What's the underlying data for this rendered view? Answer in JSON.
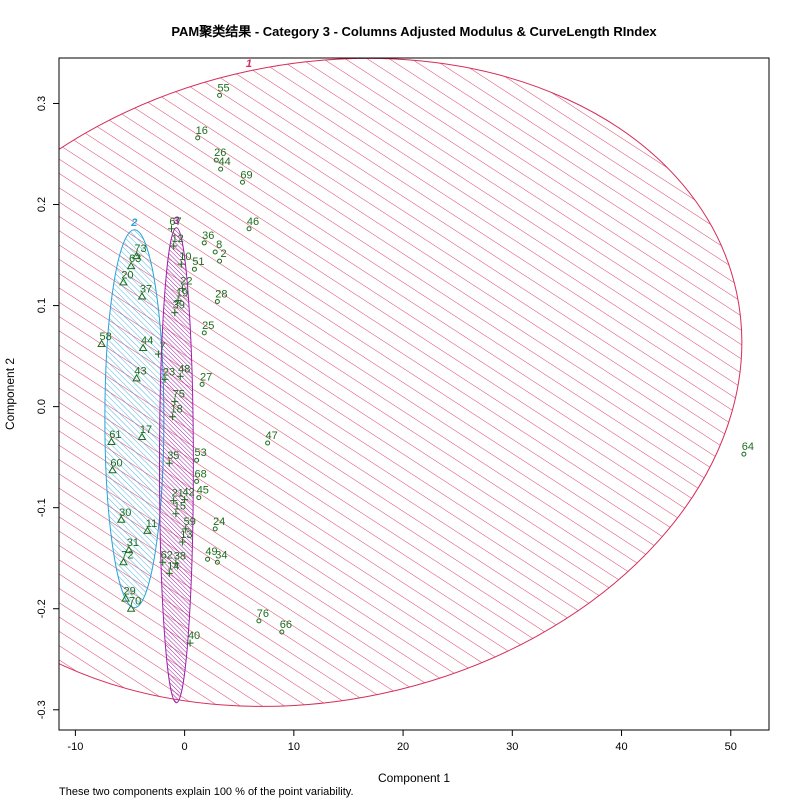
{
  "chart_data": {
    "type": "scatter",
    "title": "PAM聚类结果 - Category  3  - Columns  Adjusted Modulus  &  CurveLength RIndex",
    "xlabel": "Component 1",
    "ylabel": "Component 2",
    "footnote": "These two components explain 100 % of the point variability.",
    "xlim": [
      -11.5,
      53.5
    ],
    "ylim": [
      -0.32,
      0.345
    ],
    "x_ticks": [
      -10,
      0,
      10,
      20,
      30,
      40,
      50
    ],
    "x_tick_labels": [
      "-10",
      "0",
      "10",
      "20",
      "30",
      "40",
      "50"
    ],
    "y_ticks": [
      -0.3,
      -0.2,
      -0.1,
      0.0,
      0.1,
      0.2,
      0.3
    ],
    "y_tick_labels": [
      "-0.3",
      "-0.2",
      "-0.1",
      "0.0",
      "0.1",
      "0.2",
      "0.3"
    ],
    "point_color": "#1c6e1c",
    "clusters": [
      {
        "id": "1",
        "color": "#d62d5a",
        "ellipse": {
          "cx": 11.95,
          "cy": 0.024,
          "rx": 39.45,
          "ry": 0.315,
          "angle_deg": -12
        }
      },
      {
        "id": "2",
        "color": "#2aa3d6",
        "ellipse": {
          "cx": -4.6,
          "cy": -0.012,
          "rx": 2.7,
          "ry": 0.187,
          "angle_deg": 0
        }
      },
      {
        "id": "3",
        "color": "#a01fa8",
        "ellipse": {
          "cx": -0.75,
          "cy": -0.058,
          "rx": 1.55,
          "ry": 0.235,
          "angle_deg": 0
        }
      }
    ],
    "points": [
      {
        "label": "55",
        "x": 3.2,
        "y": 0.308,
        "cluster": "1"
      },
      {
        "label": "16",
        "x": 1.2,
        "y": 0.266,
        "cluster": "1"
      },
      {
        "label": "26",
        "x": 2.9,
        "y": 0.244,
        "cluster": "1"
      },
      {
        "label": "44",
        "x": 3.3,
        "y": 0.235,
        "cluster": "1"
      },
      {
        "label": "69",
        "x": 5.3,
        "y": 0.222,
        "cluster": "1"
      },
      {
        "label": "46",
        "x": 5.9,
        "y": 0.176,
        "cluster": "1"
      },
      {
        "label": "36",
        "x": 1.8,
        "y": 0.162,
        "cluster": "1"
      },
      {
        "label": "8",
        "x": 2.8,
        "y": 0.153,
        "cluster": "1"
      },
      {
        "label": "2",
        "x": 3.2,
        "y": 0.144,
        "cluster": "1"
      },
      {
        "label": "51",
        "x": 0.9,
        "y": 0.136,
        "cluster": "1"
      },
      {
        "label": "28",
        "x": 3.0,
        "y": 0.104,
        "cluster": "1"
      },
      {
        "label": "25",
        "x": 1.8,
        "y": 0.073,
        "cluster": "1"
      },
      {
        "label": "27",
        "x": 1.6,
        "y": 0.022,
        "cluster": "1"
      },
      {
        "label": "47",
        "x": 7.6,
        "y": -0.036,
        "cluster": "1"
      },
      {
        "label": "64",
        "x": 51.2,
        "y": -0.047,
        "cluster": "1"
      },
      {
        "label": "53",
        "x": 1.1,
        "y": -0.053,
        "cluster": "1"
      },
      {
        "label": "68",
        "x": 1.1,
        "y": -0.074,
        "cluster": "1"
      },
      {
        "label": "45",
        "x": 1.3,
        "y": -0.09,
        "cluster": "1"
      },
      {
        "label": "24",
        "x": 2.8,
        "y": -0.121,
        "cluster": "1"
      },
      {
        "label": "49",
        "x": 2.1,
        "y": -0.151,
        "cluster": "1"
      },
      {
        "label": "34",
        "x": 3.0,
        "y": -0.154,
        "cluster": "1"
      },
      {
        "label": "76",
        "x": 6.8,
        "y": -0.212,
        "cluster": "1"
      },
      {
        "label": "66",
        "x": 8.9,
        "y": -0.223,
        "cluster": "1"
      },
      {
        "label": "73",
        "x": -4.4,
        "y": 0.149,
        "cluster": "2"
      },
      {
        "label": "63",
        "x": -4.9,
        "y": 0.139,
        "cluster": "2"
      },
      {
        "label": "20",
        "x": -5.6,
        "y": 0.123,
        "cluster": "2"
      },
      {
        "label": "37",
        "x": -3.9,
        "y": 0.109,
        "cluster": "2"
      },
      {
        "label": "58",
        "x": -7.6,
        "y": 0.062,
        "cluster": "2"
      },
      {
        "label": "44",
        "x": -3.8,
        "y": 0.058,
        "cluster": "2"
      },
      {
        "label": "43",
        "x": -4.4,
        "y": 0.028,
        "cluster": "2"
      },
      {
        "label": "61",
        "x": -6.7,
        "y": -0.035,
        "cluster": "2"
      },
      {
        "label": "17",
        "x": -3.9,
        "y": -0.03,
        "cluster": "2"
      },
      {
        "label": "60",
        "x": -6.6,
        "y": -0.063,
        "cluster": "2"
      },
      {
        "label": "30",
        "x": -5.8,
        "y": -0.112,
        "cluster": "2"
      },
      {
        "label": "11",
        "x": -3.4,
        "y": -0.123,
        "cluster": "2"
      },
      {
        "label": "31",
        "x": -5.1,
        "y": -0.142,
        "cluster": "2"
      },
      {
        "label": "72",
        "x": -5.6,
        "y": -0.154,
        "cluster": "2"
      },
      {
        "label": "29",
        "x": -5.4,
        "y": -0.19,
        "cluster": "2"
      },
      {
        "label": "70",
        "x": -4.9,
        "y": -0.2,
        "cluster": "2"
      },
      {
        "label": "67",
        "x": -1.2,
        "y": 0.176,
        "cluster": "3"
      },
      {
        "label": "12",
        "x": -1.0,
        "y": 0.159,
        "cluster": "3"
      },
      {
        "label": "10",
        "x": -0.3,
        "y": 0.141,
        "cluster": "3"
      },
      {
        "label": "22",
        "x": -0.2,
        "y": 0.117,
        "cluster": "3"
      },
      {
        "label": "19",
        "x": -0.6,
        "y": 0.105,
        "cluster": "3"
      },
      {
        "label": "39",
        "x": -0.9,
        "y": 0.093,
        "cluster": "3"
      },
      {
        "label": "7",
        "x": -2.4,
        "y": 0.052,
        "cluster": "3"
      },
      {
        "label": "48",
        "x": -0.4,
        "y": 0.03,
        "cluster": "3"
      },
      {
        "label": "23",
        "x": -1.8,
        "y": 0.027,
        "cluster": "3"
      },
      {
        "label": "75",
        "x": -0.9,
        "y": 0.005,
        "cluster": "3"
      },
      {
        "label": "18",
        "x": -1.1,
        "y": -0.01,
        "cluster": "3"
      },
      {
        "label": "35",
        "x": -1.4,
        "y": -0.056,
        "cluster": "3"
      },
      {
        "label": "21",
        "x": -1.0,
        "y": -0.093,
        "cluster": "3"
      },
      {
        "label": "42",
        "x": 0.0,
        "y": -0.092,
        "cluster": "3"
      },
      {
        "label": "15",
        "x": -0.8,
        "y": -0.106,
        "cluster": "3"
      },
      {
        "label": "59",
        "x": 0.1,
        "y": -0.121,
        "cluster": "3"
      },
      {
        "label": "13",
        "x": -0.2,
        "y": -0.134,
        "cluster": "3"
      },
      {
        "label": "62",
        "x": -2.0,
        "y": -0.154,
        "cluster": "3"
      },
      {
        "label": "38",
        "x": -0.8,
        "y": -0.155,
        "cluster": "3"
      },
      {
        "label": "14",
        "x": -1.4,
        "y": -0.165,
        "cluster": "3"
      },
      {
        "label": "40",
        "x": 0.5,
        "y": -0.234,
        "cluster": "3"
      }
    ]
  }
}
